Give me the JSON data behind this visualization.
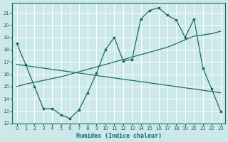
{
  "xlabel": "Humidex (Indice chaleur)",
  "bg_color": "#cce8e8",
  "grid_color": "#ffffff",
  "line_color": "#1a6b6b",
  "xlim": [
    -0.5,
    23.5
  ],
  "ylim": [
    12,
    21.8
  ],
  "yticks": [
    12,
    13,
    14,
    15,
    16,
    17,
    18,
    19,
    20,
    21
  ],
  "xticks": [
    0,
    1,
    2,
    3,
    4,
    5,
    6,
    7,
    8,
    9,
    10,
    11,
    12,
    13,
    14,
    15,
    16,
    17,
    18,
    19,
    20,
    21,
    22,
    23
  ],
  "series1_x": [
    0,
    1,
    2,
    3,
    4,
    5,
    6,
    7,
    8,
    9,
    10,
    11,
    12,
    13,
    14,
    15,
    16,
    17,
    18,
    19,
    20,
    21,
    22,
    23
  ],
  "series1_y": [
    18.5,
    16.8,
    15.0,
    13.2,
    13.2,
    12.7,
    12.4,
    13.1,
    14.5,
    16.1,
    18.0,
    19.0,
    17.1,
    17.2,
    20.5,
    21.2,
    21.4,
    20.8,
    20.4,
    19.0,
    20.5,
    16.5,
    14.8,
    13.0
  ],
  "series2_x": [
    0,
    1,
    2,
    3,
    4,
    5,
    6,
    7,
    8,
    9,
    10,
    11,
    12,
    13,
    14,
    15,
    16,
    17,
    18,
    19,
    20,
    21,
    22,
    23
  ],
  "series2_y": [
    16.8,
    16.7,
    16.6,
    16.5,
    16.4,
    16.3,
    16.2,
    16.1,
    16.0,
    15.9,
    15.8,
    15.7,
    15.6,
    15.5,
    15.4,
    15.3,
    15.2,
    15.1,
    15.0,
    14.9,
    14.8,
    14.7,
    14.6,
    14.5
  ],
  "series3_x": [
    0,
    1,
    2,
    3,
    4,
    5,
    6,
    7,
    8,
    9,
    10,
    11,
    12,
    13,
    14,
    15,
    16,
    17,
    18,
    19,
    20,
    21,
    22,
    23
  ],
  "series3_y": [
    15.0,
    15.2,
    15.35,
    15.5,
    15.65,
    15.8,
    16.0,
    16.2,
    16.4,
    16.6,
    16.8,
    17.0,
    17.2,
    17.4,
    17.6,
    17.8,
    18.0,
    18.2,
    18.5,
    18.8,
    19.1,
    19.2,
    19.3,
    19.5
  ]
}
